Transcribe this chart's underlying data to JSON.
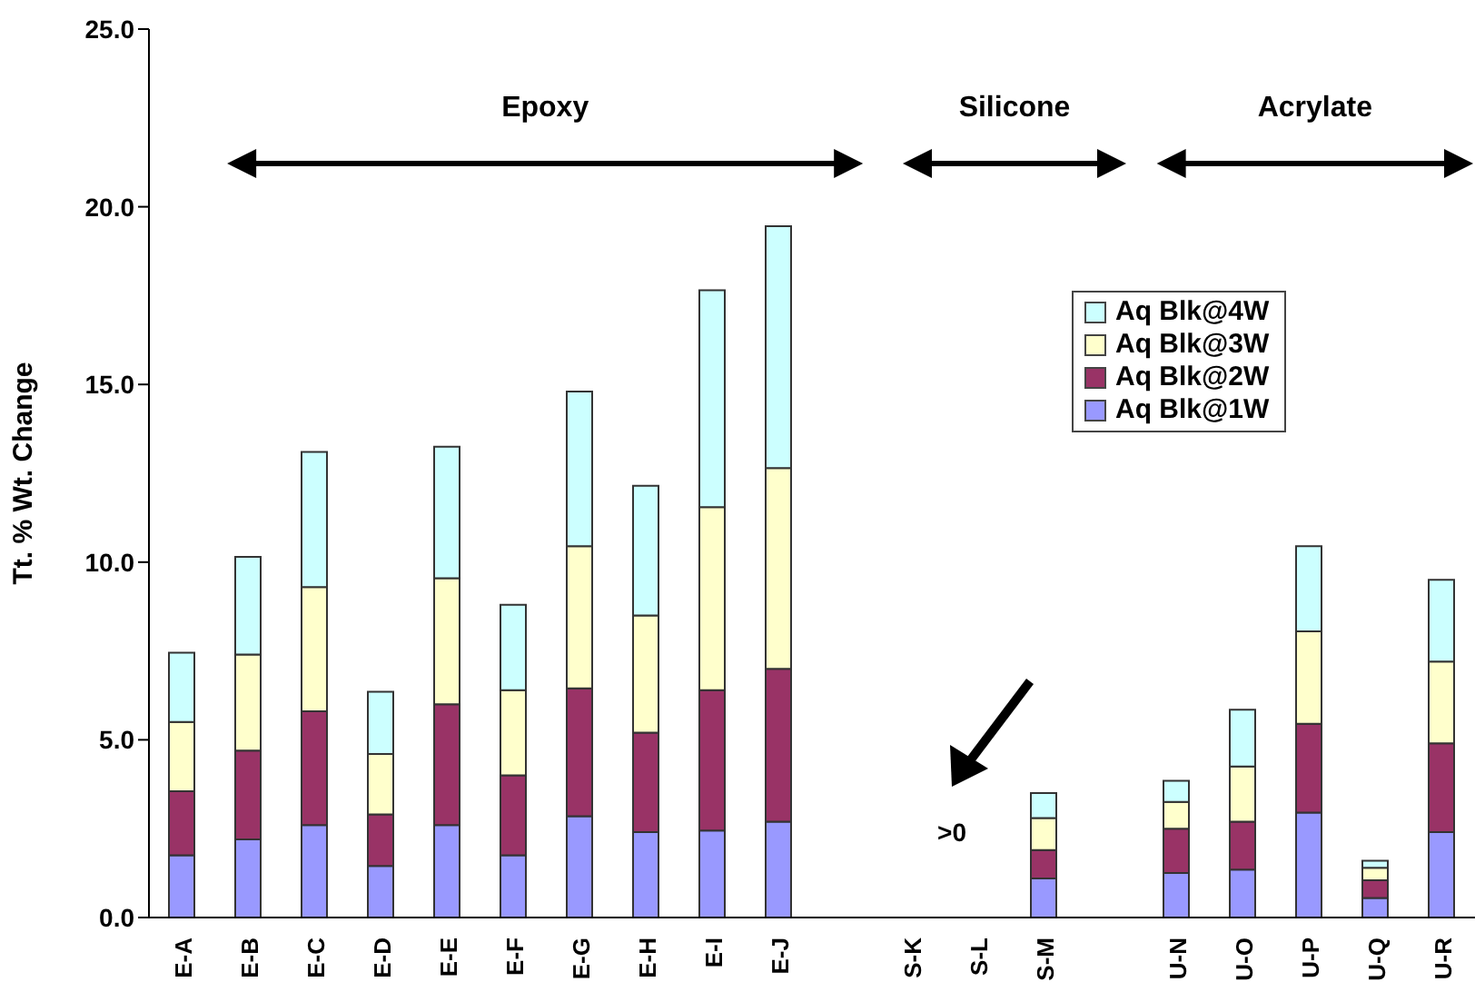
{
  "chart_data": {
    "type": "bar",
    "stacked": true,
    "ylabel": "Tt. % Wt. Change",
    "categories": [
      "E-A",
      "E-B",
      "E-C",
      "E-D",
      "E-E",
      "E-F",
      "E-G",
      "E-H",
      "E-I",
      "E-J",
      null,
      "S-K",
      "S-L",
      "S-M",
      null,
      "U-N",
      "U-O",
      "U-P",
      "U-Q",
      "U-R"
    ],
    "series": [
      {
        "name": "Aq Blk@1W",
        "color": "#9999ff",
        "values": [
          1.75,
          2.2,
          2.6,
          1.45,
          2.6,
          1.75,
          2.85,
          2.4,
          2.45,
          2.7,
          null,
          0,
          0,
          1.1,
          null,
          1.25,
          1.35,
          2.95,
          0.55,
          2.4
        ]
      },
      {
        "name": "Aq Blk@2W",
        "color": "#993366",
        "values": [
          1.8,
          2.5,
          3.2,
          1.45,
          3.4,
          2.25,
          3.6,
          2.8,
          3.95,
          4.3,
          null,
          0,
          0,
          0.8,
          null,
          1.25,
          1.35,
          2.5,
          0.5,
          2.5
        ]
      },
      {
        "name": "Aq Blk@3W",
        "color": "#ffffcc",
        "values": [
          1.95,
          2.7,
          3.5,
          1.7,
          3.55,
          2.4,
          4.0,
          3.3,
          5.15,
          5.65,
          null,
          0,
          0,
          0.9,
          null,
          0.75,
          1.55,
          2.6,
          0.35,
          2.3
        ]
      },
      {
        "name": "Aq Blk@4W",
        "color": "#ccffff",
        "values": [
          1.95,
          2.75,
          3.8,
          1.75,
          3.7,
          2.4,
          4.35,
          3.65,
          6.1,
          6.8,
          null,
          0,
          0,
          0.7,
          null,
          0.6,
          1.6,
          2.4,
          0.2,
          2.3
        ]
      }
    ],
    "ylim": [
      0,
      25
    ],
    "yticks": [
      {
        "value": 0,
        "label": "0.0"
      },
      {
        "value": 5,
        "label": "5.0"
      },
      {
        "value": 10,
        "label": "10.0"
      },
      {
        "value": 15,
        "label": "15.0"
      },
      {
        "value": 20,
        "label": "20.0"
      },
      {
        "value": 25,
        "label": "25.0"
      }
    ],
    "grid": false,
    "legend": "top right",
    "annotations": [
      "Epoxy",
      "Silicone",
      "Acrylate",
      ">0"
    ]
  }
}
